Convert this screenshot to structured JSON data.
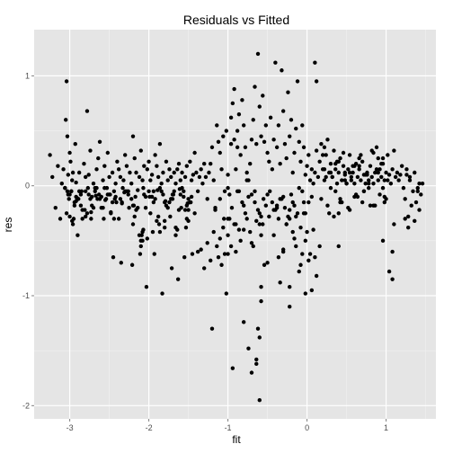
{
  "chart_data": {
    "type": "scatter",
    "title": "Residuals vs Fitted",
    "xlabel": "fit",
    "ylabel": "res",
    "xlim": [
      -3.45,
      1.63
    ],
    "ylim": [
      -2.12,
      1.42
    ],
    "x_ticks": [
      -3,
      -2,
      -1,
      0,
      1
    ],
    "y_ticks": [
      -2,
      -1,
      0,
      1
    ],
    "x_tick_labels": [
      "-3",
      "-2",
      "-1",
      "0",
      "1"
    ],
    "y_tick_labels": [
      "-2",
      "-1",
      "0",
      "1"
    ],
    "grid": true,
    "background": "#e5e5e5",
    "grid_color": "#ffffff",
    "point_color": "#000000",
    "points": {
      "x": [
        -3.25,
        -3.22,
        -3.18,
        -3.15,
        -3.12,
        -3.1,
        -3.08,
        -3.06,
        -3.05,
        -3.04,
        -3.03,
        -3.02,
        -3.01,
        -3.0,
        -2.99,
        -2.98,
        -2.97,
        -2.96,
        -2.95,
        -2.94,
        -2.93,
        -2.92,
        -2.9,
        -2.88,
        -2.86,
        -2.84,
        -2.82,
        -2.8,
        -2.78,
        -2.76,
        -2.74,
        -2.72,
        -2.7,
        -2.68,
        -2.66,
        -2.64,
        -2.62,
        -2.6,
        -2.58,
        -2.56,
        -2.54,
        -2.52,
        -2.5,
        -2.48,
        -2.46,
        -2.44,
        -2.42,
        -2.4,
        -2.38,
        -2.36,
        -2.34,
        -2.32,
        -2.3,
        -2.28,
        -2.26,
        -2.24,
        -2.22,
        -2.2,
        -2.18,
        -2.16,
        -2.14,
        -2.12,
        -2.1,
        -2.08,
        -2.06,
        -2.04,
        -2.02,
        -2.0,
        -1.98,
        -1.96,
        -1.94,
        -1.92,
        -1.9,
        -1.88,
        -1.86,
        -1.84,
        -1.82,
        -1.8,
        -1.78,
        -1.76,
        -1.74,
        -1.72,
        -1.7,
        -1.68,
        -1.66,
        -1.64,
        -1.62,
        -1.6,
        -1.58,
        -1.56,
        -1.54,
        -1.52,
        -1.5,
        -1.48,
        -1.46,
        -1.44,
        -1.42,
        -1.4,
        -1.38,
        -1.36,
        -1.34,
        -1.32,
        -1.3,
        -1.28,
        -1.26,
        -1.24,
        -1.22,
        -1.2,
        -1.18,
        -1.16,
        -1.14,
        -1.12,
        -1.1,
        -1.08,
        -1.06,
        -1.04,
        -1.02,
        -1.0,
        -0.98,
        -0.96,
        -0.94,
        -0.92,
        -0.9,
        -0.88,
        -0.86,
        -0.84,
        -0.82,
        -0.8,
        -0.78,
        -0.76,
        -0.74,
        -0.72,
        -0.7,
        -0.68,
        -0.66,
        -0.64,
        -0.62,
        -0.6,
        -0.58,
        -0.56,
        -0.54,
        -0.52,
        -0.5,
        -0.48,
        -0.46,
        -0.44,
        -0.42,
        -0.4,
        -0.38,
        -0.36,
        -0.34,
        -0.32,
        -0.3,
        -0.28,
        -0.26,
        -0.24,
        -0.22,
        -0.2,
        -0.18,
        -0.16,
        -0.14,
        -0.12,
        -0.1,
        -0.08,
        -0.06,
        -0.04,
        -0.02,
        0.0,
        0.02,
        0.04,
        0.06,
        0.08,
        0.1,
        0.12,
        0.14,
        0.16,
        0.18,
        0.2,
        0.22,
        0.24,
        0.26,
        0.28,
        0.3,
        0.32,
        0.34,
        0.36,
        0.38,
        0.4,
        0.42,
        0.44,
        0.46,
        0.48,
        0.5,
        0.52,
        0.54,
        0.56,
        0.58,
        0.6,
        0.62,
        0.64,
        0.66,
        0.68,
        0.7,
        0.72,
        0.74,
        0.76,
        0.78,
        0.8,
        0.82,
        0.84,
        0.86,
        0.88,
        0.9,
        0.92,
        0.94,
        0.96,
        0.98,
        1.0,
        1.02,
        1.04,
        1.06,
        1.08,
        1.1,
        1.12,
        1.14,
        1.16,
        1.18,
        1.2,
        1.22,
        1.24,
        1.26,
        1.28,
        1.3,
        1.32,
        1.34,
        1.36,
        1.38,
        1.4,
        1.42,
        -3.0,
        -2.96,
        -2.9,
        -2.85,
        -2.78,
        -2.72,
        -2.66,
        -2.58,
        -2.5,
        -2.44,
        -2.36,
        -2.28,
        -2.2,
        -2.14,
        -2.06,
        -1.98,
        -1.92,
        -1.86,
        -1.8,
        -1.74,
        -1.68,
        -1.62,
        -1.56,
        -1.5,
        -3.02,
        -2.94,
        -2.88,
        -2.8,
        -2.74,
        -2.68,
        -2.6,
        -2.52,
        -2.46,
        -2.38,
        -2.3,
        -2.22,
        -2.16,
        -2.08,
        -2.0,
        -1.94,
        -1.88,
        -1.82,
        -1.76,
        -1.7,
        -1.64,
        -1.58,
        -1.52,
        -1.46,
        -3.04,
        -2.98,
        -2.92,
        -2.84,
        -2.76,
        -2.7,
        -2.62,
        -2.56,
        -2.48,
        -2.42,
        -2.34,
        -2.26,
        -2.18,
        -2.12,
        -2.04,
        -1.96,
        -1.9,
        -1.84,
        -1.78,
        -1.72,
        -1.66,
        -1.6,
        -1.54,
        -1.48,
        -3.06,
        -3.0,
        -2.92,
        -2.86,
        -2.8,
        -2.73,
        -2.65,
        -2.57,
        -2.49,
        -2.41,
        -2.33,
        -2.25,
        -2.17,
        -2.1,
        -2.02,
        -1.95,
        -1.87,
        -1.8,
        -1.73,
        -1.66,
        -1.59,
        -1.53,
        -1.47,
        -1.42,
        -2.97,
        -2.89,
        -2.81,
        -2.73,
        -2.63,
        -2.53,
        -2.43,
        -2.31,
        -2.19,
        -2.07,
        -1.99,
        -1.89,
        -1.79,
        -1.69,
        -1.61,
        -1.51,
        -3.03,
        -2.91,
        -2.77,
        -2.67,
        -2.55,
        -2.45,
        -2.35,
        -2.21,
        -2.11,
        -2.03,
        -1.93,
        -1.83,
        -1.71,
        -1.63,
        -1.55,
        -1.45,
        -2.1,
        -2.08,
        -2.09,
        -2.07,
        -2.2,
        -1.86,
        -1.52,
        -1.5,
        -1.38,
        -1.34,
        -1.3,
        -1.26,
        -1.22,
        -1.18,
        -1.14,
        -1.12,
        -1.1,
        -1.08,
        -1.06,
        -1.04,
        -1.0,
        -0.96,
        -0.9,
        -0.84,
        -0.8,
        -0.76,
        -0.72,
        -0.68,
        -0.64,
        -0.6,
        -0.56,
        -0.52,
        -0.48,
        -0.44,
        -0.4,
        -0.36,
        -0.32,
        -0.28,
        -0.24,
        -0.2,
        -0.16,
        -0.12,
        -0.08,
        -0.04,
        -1.16,
        -1.1,
        -1.05,
        -0.98,
        -0.92,
        -0.86,
        -0.8,
        -0.74,
        -0.66,
        -0.58,
        -0.5,
        -0.42,
        -0.34,
        -0.26,
        -0.18,
        -0.1,
        -0.02,
        0.06,
        -1.0,
        -0.95,
        -0.88,
        -0.82,
        -0.7,
        -0.62,
        -0.55,
        -0.47,
        -0.38,
        -0.3,
        -0.22,
        -0.14,
        -0.06,
        0.02,
        0.1,
        -1.02,
        -1.0,
        -0.58,
        -0.54,
        -0.34,
        -0.3,
        -0.26,
        -0.22,
        -0.18,
        -0.14,
        -0.1,
        -0.06,
        -0.02,
        0.02,
        0.06,
        -0.9,
        -0.86,
        -0.78,
        -0.7,
        -0.6,
        -0.5,
        -0.42,
        -0.38,
        -0.3,
        -0.22,
        -0.16,
        -0.08,
        -0.04,
        0.04,
        0.08,
        0.12,
        0.16,
        -0.8,
        -0.74,
        -0.7,
        -0.64,
        -0.6,
        -0.6,
        -0.58,
        -0.58,
        -0.62,
        -0.36,
        -0.02,
        -0.64,
        -0.94,
        -1.2,
        -0.22,
        0.0,
        -1.0,
        -0.96,
        -0.92,
        -0.88,
        -0.76,
        -0.66,
        0.2,
        0.26,
        0.3,
        0.34,
        0.38,
        0.42,
        0.46,
        0.5,
        0.54,
        0.58,
        0.62,
        0.66,
        0.7,
        0.74,
        0.78,
        0.82,
        0.86,
        0.9,
        0.94,
        0.98,
        0.22,
        0.28,
        0.32,
        0.36,
        0.4,
        0.44,
        0.48,
        0.52,
        0.56,
        0.6,
        0.64,
        0.68,
        0.72,
        0.76,
        0.8,
        0.84,
        0.88,
        0.92,
        0.96,
        1.0,
        0.24,
        0.3,
        0.36,
        0.42,
        0.48,
        0.54,
        0.6,
        0.66,
        0.72,
        0.78,
        0.84,
        0.9,
        0.96,
        1.02,
        1.08,
        0.96,
        0.98,
        1.04,
        1.08,
        1.1,
        1.24,
        1.26,
        1.28,
        1.3,
        1.36,
        1.4,
        1.42,
        1.44,
        1.46,
        0.18,
        0.22,
        0.12,
        0.1,
        0.4,
        0.4
      ],
      "y": [
        0.28,
        0.08,
        -0.2,
        0.18,
        -0.3,
        0.02,
        0.15,
        -0.02,
        0.6,
        0.95,
        0.45,
        0.1,
        -0.12,
        0.3,
        0.22,
        -0.05,
        0.05,
        0.12,
        -0.3,
        -0.15,
        0.38,
        0.03,
        -0.45,
        0.12,
        -0.08,
        -0.22,
        0.2,
        0.08,
        0.68,
        0.1,
        0.32,
        -0.18,
        0.02,
        -0.05,
        0.15,
        0.25,
        0.4,
        -0.1,
        0.05,
        0.18,
        -0.12,
        0.3,
        0.08,
        -0.25,
        0.12,
        -0.05,
        0.02,
        0.22,
        0.15,
        0.08,
        -0.15,
        0.05,
        0.28,
        0.18,
        -0.08,
        0.12,
        0.02,
        0.45,
        0.25,
        0.12,
        -0.2,
        0.08,
        0.32,
        0.05,
        0.18,
        -0.1,
        0.15,
        0.22,
        0.05,
        0.1,
        -0.05,
        0.28,
        0.18,
        0.08,
        0.38,
        0.02,
        0.12,
        -0.15,
        0.22,
        0.05,
        0.15,
        0.08,
        -0.08,
        0.12,
        0.02,
        0.15,
        0.2,
        0.05,
        0.12,
        -0.05,
        0.08,
        0.18,
        -0.12,
        0.22,
        0.05,
        0.1,
        0.3,
        0.12,
        -0.05,
        0.08,
        0.15,
        0.02,
        0.2,
        0.08,
        -0.12,
        0.12,
        0.2,
        0.35,
        0.05,
        -0.2,
        0.55,
        0.4,
        0.3,
        0.15,
        0.45,
        -0.05,
        0.5,
        0.1,
        -0.3,
        0.62,
        0.75,
        0.88,
        0.15,
        0.5,
        0.65,
        0.28,
        0.78,
        0.55,
        0.35,
        0.12,
        0.05,
        0.2,
        0.42,
        0.6,
        0.9,
        0.38,
        1.2,
        0.72,
        0.45,
        0.82,
        0.4,
        0.55,
        0.3,
        0.22,
        0.62,
        0.15,
        0.42,
        1.12,
        0.35,
        0.55,
        0.2,
        1.05,
        0.68,
        0.38,
        0.25,
        0.85,
        0.45,
        0.6,
        0.12,
        0.3,
        0.52,
        0.95,
        0.4,
        0.22,
        0.55,
        0.35,
        0.1,
        0.18,
        0.28,
        0.05,
        0.15,
        0.02,
        0.12,
        0.32,
        0.08,
        0.22,
        0.38,
        0.15,
        0.05,
        0.28,
        0.42,
        0.12,
        0.2,
        0.08,
        0.32,
        0.15,
        0.02,
        0.12,
        0.25,
        0.05,
        0.18,
        0.1,
        0.02,
        0.15,
        0.28,
        0.08,
        0.12,
        0.02,
        0.2,
        0.08,
        0.15,
        0.05,
        0.22,
        0.1,
        0.02,
        0.12,
        0.05,
        0.18,
        0.08,
        0.3,
        0.12,
        0.35,
        0.25,
        0.15,
        0.08,
        0.2,
        0.05,
        0.12,
        0.28,
        0.1,
        0.02,
        0.15,
        0.32,
        0.08,
        0.12,
        0.05,
        0.1,
        0.18,
        -0.02,
        -0.12,
        0.1,
        -0.28,
        0.05,
        -0.18,
        -0.05,
        -0.32,
        -0.15,
        -0.02,
        -0.22,
        -0.08,
        -0.35,
        -0.12,
        -0.05,
        -0.25,
        -0.1,
        -0.02,
        -0.2,
        -0.08,
        -0.3,
        -0.12,
        -0.05,
        -0.18,
        -0.04,
        -0.08,
        -0.25,
        -0.12,
        -0.02,
        -0.38,
        -0.15,
        -0.05,
        -0.22,
        -0.1,
        -0.32,
        -0.08,
        -0.18,
        -0.05,
        -0.28,
        -0.12,
        -0.02,
        -0.2,
        -0.08,
        -0.15,
        -0.3,
        -0.05,
        -0.12,
        -0.22,
        -0.42,
        -0.05,
        -0.15,
        -0.28,
        -0.08,
        -0.2,
        -0.12,
        -0.4,
        -0.02,
        -0.18,
        -0.1,
        -0.25,
        -0.05,
        -0.14,
        -0.3,
        -0.08,
        -0.2,
        -0.12,
        -0.02,
        -0.24,
        -0.1,
        -0.16,
        -0.05,
        -0.28,
        -0.45,
        -0.2,
        -0.1,
        -0.32,
        -0.05,
        -0.18,
        -0.12,
        -0.38,
        -0.08,
        -0.22,
        -0.15,
        -0.02,
        -0.28,
        -0.1,
        -0.18,
        -0.05,
        -0.24,
        -0.12,
        -0.3,
        -0.08,
        -0.15,
        -0.02,
        -0.2,
        -0.1,
        -0.5,
        -0.48,
        -0.42,
        -0.35,
        -0.32,
        -0.28,
        -0.45,
        -0.2,
        -0.38,
        -0.15,
        -0.25,
        -0.32,
        -0.12,
        -0.22,
        -0.3,
        -0.08,
        -0.02,
        -0.12,
        -0.06,
        -0.18,
        -0.02,
        -0.1,
        -0.04,
        -0.14,
        -0.08,
        -0.03,
        -0.16,
        -0.05,
        -0.11,
        -0.02,
        -0.09,
        -0.13,
        -0.65,
        -0.7,
        -0.72,
        -0.62,
        -0.92,
        -0.62,
        -0.98,
        -0.75,
        -0.85,
        -0.65,
        -0.62,
        -0.55,
        -0.5,
        -0.45,
        -0.4,
        -0.35,
        -0.42,
        -0.3,
        -0.22,
        -0.6,
        -0.58,
        -0.75,
        -0.52,
        -0.68,
        -0.42,
        -0.55,
        -0.65,
        -0.48,
        -0.72,
        -0.38,
        -0.62,
        -0.45,
        -0.55,
        -0.35,
        -0.5,
        -0.4,
        -0.3,
        -0.42,
        -0.55,
        -0.32,
        -0.25,
        -0.35,
        -0.18,
        -0.28,
        -0.15,
        -0.22,
        -0.3,
        -0.12,
        -0.2,
        -0.28,
        -0.08,
        -0.18,
        -0.25,
        -0.38,
        -0.15,
        -0.22,
        -0.12,
        -0.3,
        -0.08,
        -0.35,
        -0.05,
        -0.18,
        -0.1,
        -0.15,
        -0.28,
        -0.08,
        -0.22,
        -0.12,
        -0.35,
        -0.15,
        -0.02,
        -0.25,
        -0.1,
        -0.02,
        -0.2,
        -0.05,
        -0.15,
        -0.08,
        -0.22,
        -0.12,
        -0.05,
        -0.18,
        -0.1,
        -0.22,
        -0.28,
        -0.05,
        -0.15,
        -0.65,
        -0.98,
        -0.3,
        -0.45,
        -0.72,
        -0.88,
        -0.6,
        -0.35,
        -0.92,
        -0.42,
        -0.55,
        -0.78,
        -0.62,
        -0.5,
        -0.68,
        -0.95,
        -0.6,
        -0.4,
        -0.25,
        -0.52,
        -0.35,
        -0.7,
        -0.45,
        -0.2,
        -0.58,
        -0.3,
        -0.48,
        -0.72,
        -0.25,
        -0.62,
        -0.4,
        -0.82,
        -0.55,
        -1.24,
        -1.48,
        -1.7,
        -1.58,
        -1.95,
        -1.38,
        -0.92,
        -1.05,
        -1.3,
        -0.65,
        -0.98,
        -1.62,
        -1.66,
        -1.3,
        -1.1,
        -0.42,
        -0.62,
        0.38,
        0.42,
        0.35,
        0.05,
        -0.05,
        0.28,
        -0.18,
        0.12,
        -0.28,
        0.22,
        -0.12,
        0.3,
        0.02,
        -0.22,
        0.18,
        -0.08,
        0.25,
        -0.15,
        0.1,
        -0.02,
        0.32,
        -0.18,
        0.05,
        0.2,
        -0.1,
        0.15,
        -0.25,
        0.08,
        -0.05,
        0.22,
        -0.15,
        0.12,
        -0.2,
        0.05,
        0.18,
        -0.1,
        0.28,
        -0.05,
        0.1,
        -0.18,
        0.02,
        0.15,
        -0.08,
        0.25,
        -0.12,
        0.08,
        -0.02,
        0.2,
        -0.15,
        0.05,
        0.12,
        -0.1,
        0.18,
        -0.05,
        0.02,
        -0.18,
        0.12,
        -0.02,
        0.05,
        -0.6,
        -0.5,
        -0.15,
        -0.78,
        -0.85,
        -0.35,
        -0.3,
        0.15,
        -0.38,
        0.08,
        0.12,
        -0.05,
        0.02,
        -0.08,
        0.02,
        -0.12,
        0.35,
        0.95,
        1.12,
        -0.55,
        -0.25
      ]
    }
  }
}
